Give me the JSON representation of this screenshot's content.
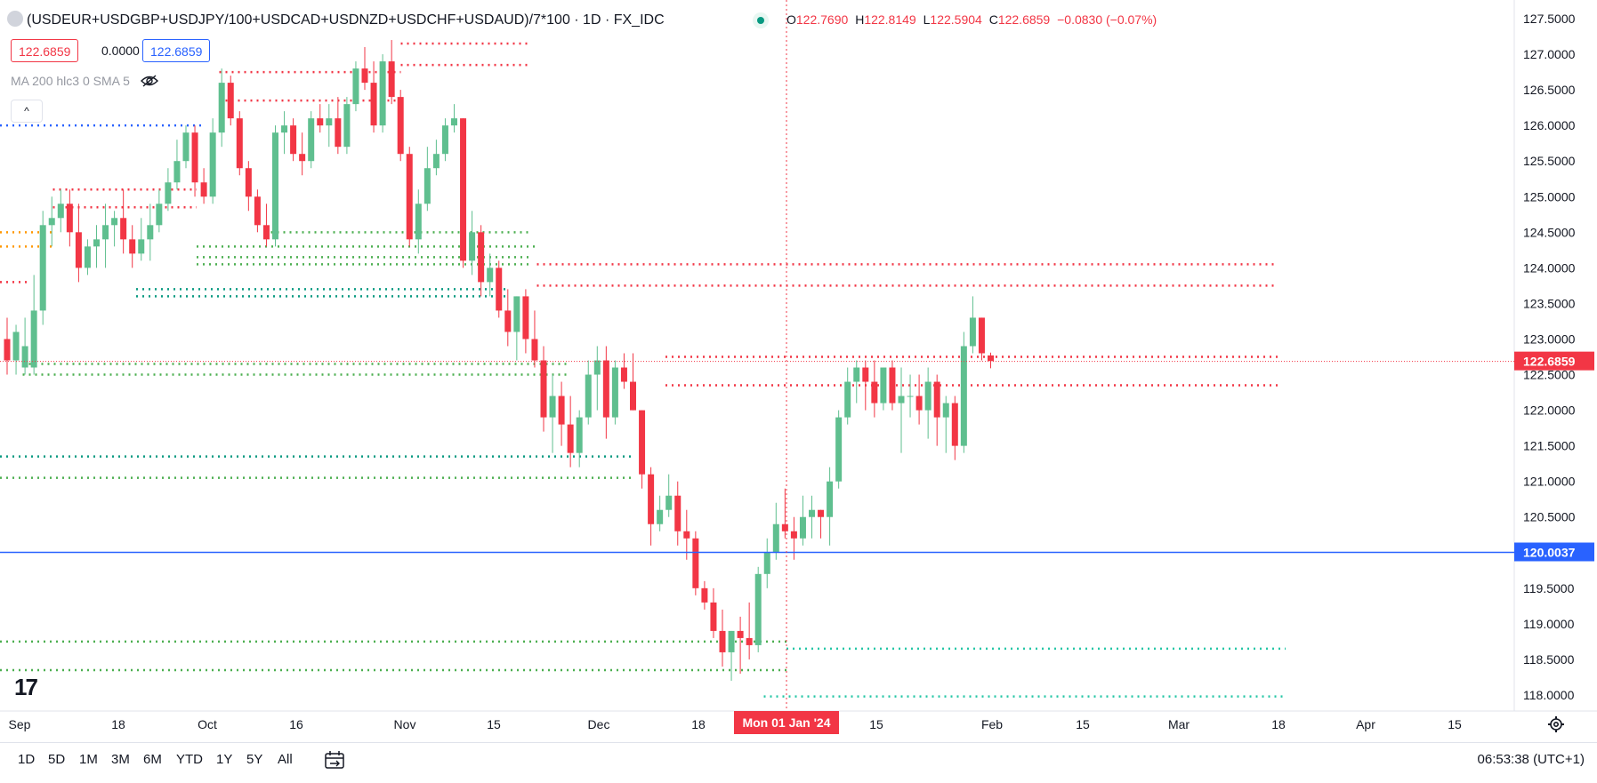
{
  "header": {
    "symbol": "(USDEUR+USDGBP+USDJPY/100+USDCAD+USDNZD+USDCHF+USDAUD)/7*100 · 1D · FX_IDC",
    "ohlc": {
      "o_label": "O",
      "o": "122.7690",
      "h_label": "H",
      "h": "122.8149",
      "l_label": "L",
      "l": "122.5904",
      "c_label": "C",
      "c": "122.6859",
      "change": "−0.0830 (−0.07%)"
    },
    "sell_price": "122.6859",
    "spread": "0.0000",
    "buy_price": "122.6859",
    "indicator": "MA 200 hlc3 0 SMA 5",
    "collapse_label": "^",
    "logo": "17"
  },
  "bottom": {
    "ranges": [
      "1D",
      "5D",
      "1M",
      "3M",
      "6M",
      "YTD",
      "1Y",
      "5Y",
      "All"
    ],
    "clock": "06:53:38 (UTC+1)"
  },
  "colors": {
    "up": "#089981",
    "up_body": "#5fbf8f",
    "down": "#f23645",
    "blue": "#2962ff",
    "grid": "#f0f3fa"
  },
  "chart_data": {
    "type": "candlestick",
    "y_range": [
      117.9,
      127.8
    ],
    "y_ticks": [
      "127.5000",
      "127.0000",
      "126.5000",
      "126.0000",
      "125.5000",
      "125.0000",
      "124.5000",
      "124.0000",
      "123.5000",
      "123.0000",
      "122.5000",
      "122.0000",
      "121.5000",
      "121.0000",
      "120.5000",
      "120.0000",
      "119.5000",
      "119.0000",
      "118.5000",
      "118.0000"
    ],
    "x_labels": [
      "Sep",
      "18",
      "Oct",
      "16",
      "Nov",
      "15",
      "Dec",
      "18",
      "15",
      "Feb",
      "15",
      "Mar",
      "18",
      "Apr",
      "15"
    ],
    "crosshair_label": "Mon 01 Jan '24",
    "last_price_label": "122.6859",
    "horizontal_line_label": "120.0037",
    "horizontal_line_value": 120.0037,
    "last_price_value": 122.6859,
    "candles": [
      [
        123.0,
        123.3,
        122.5,
        122.7
      ],
      [
        122.7,
        123.2,
        122.5,
        123.1
      ],
      [
        122.6,
        123.3,
        122.5,
        122.9
      ],
      [
        122.6,
        123.9,
        122.5,
        123.4
      ],
      [
        123.4,
        124.8,
        123.2,
        124.6
      ],
      [
        124.6,
        125.0,
        124.3,
        124.7
      ],
      [
        124.7,
        125.1,
        124.5,
        124.9
      ],
      [
        124.9,
        125.1,
        124.3,
        124.5
      ],
      [
        124.5,
        124.9,
        123.8,
        124.0
      ],
      [
        124.0,
        124.4,
        123.9,
        124.3
      ],
      [
        124.3,
        124.6,
        124.0,
        124.4
      ],
      [
        124.4,
        124.9,
        124.0,
        124.6
      ],
      [
        124.6,
        124.8,
        124.3,
        124.7
      ],
      [
        124.7,
        125.1,
        124.2,
        124.4
      ],
      [
        124.4,
        124.6,
        124.0,
        124.2
      ],
      [
        124.2,
        124.7,
        124.1,
        124.4
      ],
      [
        124.4,
        124.9,
        124.1,
        124.6
      ],
      [
        124.6,
        125.1,
        124.5,
        124.9
      ],
      [
        124.9,
        125.4,
        124.8,
        125.2
      ],
      [
        125.2,
        125.8,
        125.1,
        125.5
      ],
      [
        125.5,
        126.0,
        125.4,
        125.9
      ],
      [
        125.9,
        126.0,
        125.0,
        125.2
      ],
      [
        125.2,
        125.4,
        124.9,
        125.0
      ],
      [
        125.0,
        126.1,
        124.9,
        125.9
      ],
      [
        125.9,
        126.8,
        125.7,
        126.6
      ],
      [
        126.6,
        126.7,
        126.0,
        126.1
      ],
      [
        126.1,
        126.2,
        125.3,
        125.4
      ],
      [
        125.4,
        125.5,
        124.8,
        125.0
      ],
      [
        125.0,
        125.1,
        124.5,
        124.6
      ],
      [
        124.6,
        124.9,
        124.3,
        124.4
      ],
      [
        124.4,
        126.0,
        124.3,
        125.9
      ],
      [
        125.9,
        126.2,
        125.6,
        126.0
      ],
      [
        126.0,
        126.1,
        125.5,
        125.6
      ],
      [
        125.6,
        125.9,
        125.3,
        125.5
      ],
      [
        125.5,
        126.2,
        125.4,
        126.1
      ],
      [
        126.1,
        126.3,
        125.9,
        126.0
      ],
      [
        126.0,
        126.3,
        125.7,
        126.1
      ],
      [
        126.1,
        126.4,
        125.6,
        125.7
      ],
      [
        125.7,
        126.4,
        125.6,
        126.3
      ],
      [
        126.3,
        126.9,
        126.2,
        126.8
      ],
      [
        126.8,
        127.1,
        126.5,
        126.6
      ],
      [
        126.6,
        126.9,
        125.9,
        126.0
      ],
      [
        126.0,
        127.0,
        125.9,
        126.9
      ],
      [
        126.9,
        127.2,
        126.3,
        126.4
      ],
      [
        126.4,
        126.5,
        125.5,
        125.6
      ],
      [
        125.6,
        125.7,
        124.3,
        124.4
      ],
      [
        124.4,
        125.1,
        124.2,
        124.9
      ],
      [
        124.9,
        125.7,
        124.8,
        125.4
      ],
      [
        125.4,
        125.8,
        125.3,
        125.6
      ],
      [
        125.6,
        126.1,
        125.5,
        126.0
      ],
      [
        126.0,
        126.3,
        125.9,
        126.1
      ],
      [
        126.1,
        126.1,
        124.0,
        124.1
      ],
      [
        124.1,
        124.8,
        123.9,
        124.5
      ],
      [
        124.5,
        124.6,
        123.6,
        123.8
      ],
      [
        123.8,
        124.2,
        123.6,
        124.0
      ],
      [
        124.0,
        124.1,
        123.3,
        123.4
      ],
      [
        123.4,
        123.7,
        122.9,
        123.1
      ],
      [
        123.1,
        123.6,
        122.7,
        123.6
      ],
      [
        123.6,
        123.7,
        122.8,
        123.0
      ],
      [
        123.0,
        123.4,
        122.6,
        122.7
      ],
      [
        122.7,
        122.9,
        121.7,
        121.9
      ],
      [
        121.9,
        122.5,
        121.4,
        122.2
      ],
      [
        122.2,
        122.4,
        121.5,
        121.8
      ],
      [
        121.8,
        122.2,
        121.2,
        121.4
      ],
      [
        121.4,
        122.0,
        121.2,
        121.9
      ],
      [
        121.9,
        122.7,
        121.8,
        122.5
      ],
      [
        122.5,
        122.9,
        122.0,
        122.7
      ],
      [
        122.7,
        122.9,
        121.6,
        121.9
      ],
      [
        121.9,
        122.7,
        121.8,
        122.6
      ],
      [
        122.6,
        122.8,
        122.3,
        122.4
      ],
      [
        122.4,
        122.8,
        122.0,
        122.0
      ],
      [
        122.0,
        122.0,
        120.9,
        121.1
      ],
      [
        121.1,
        121.2,
        120.1,
        120.4
      ],
      [
        120.4,
        120.8,
        120.3,
        120.6
      ],
      [
        120.6,
        121.1,
        120.5,
        120.8
      ],
      [
        120.8,
        121.0,
        120.1,
        120.3
      ],
      [
        120.3,
        120.6,
        119.9,
        120.2
      ],
      [
        120.2,
        120.3,
        119.4,
        119.5
      ],
      [
        119.5,
        119.6,
        119.2,
        119.3
      ],
      [
        119.3,
        119.5,
        118.8,
        118.9
      ],
      [
        118.9,
        119.2,
        118.4,
        118.6
      ],
      [
        118.6,
        118.9,
        118.2,
        118.9
      ],
      [
        118.9,
        119.1,
        118.3,
        118.8
      ],
      [
        118.8,
        119.3,
        118.5,
        118.7
      ],
      [
        118.7,
        119.8,
        118.6,
        119.7
      ],
      [
        119.7,
        120.2,
        119.5,
        120.0
      ],
      [
        120.0,
        120.7,
        119.9,
        120.4
      ],
      [
        120.4,
        120.9,
        120.2,
        120.3
      ],
      [
        120.3,
        120.5,
        119.9,
        120.2
      ],
      [
        120.2,
        120.8,
        120.1,
        120.5
      ],
      [
        120.5,
        120.8,
        120.2,
        120.6
      ],
      [
        120.6,
        120.6,
        120.2,
        120.5
      ],
      [
        120.5,
        121.2,
        120.1,
        121.0
      ],
      [
        121.0,
        122.0,
        120.9,
        121.9
      ],
      [
        121.9,
        122.6,
        121.8,
        122.4
      ],
      [
        122.4,
        122.7,
        122.1,
        122.6
      ],
      [
        122.6,
        122.7,
        122.0,
        122.4
      ],
      [
        122.4,
        122.7,
        121.9,
        122.1
      ],
      [
        122.1,
        122.6,
        122.0,
        122.6
      ],
      [
        122.6,
        122.7,
        122.0,
        122.1
      ],
      [
        122.1,
        122.6,
        121.4,
        122.2
      ],
      [
        122.2,
        122.5,
        121.9,
        122.2
      ],
      [
        122.2,
        122.5,
        121.8,
        122.0
      ],
      [
        122.0,
        122.6,
        121.6,
        122.4
      ],
      [
        122.4,
        122.5,
        121.5,
        121.9
      ],
      [
        121.9,
        122.2,
        121.4,
        122.1
      ],
      [
        122.1,
        122.2,
        121.3,
        121.5
      ],
      [
        121.5,
        123.1,
        121.4,
        122.9
      ],
      [
        122.9,
        123.6,
        122.8,
        123.3
      ],
      [
        123.3,
        123.3,
        122.7,
        122.8
      ],
      [
        122.77,
        122.81,
        122.59,
        122.69
      ]
    ],
    "h_lines": [
      {
        "value": 126.0,
        "color": "#2962ff",
        "x0": 0.0,
        "x1": 0.135
      },
      {
        "value": 124.5,
        "color": "#ff9800",
        "x0": 0.0,
        "x1": 0.035
      },
      {
        "value": 124.3,
        "color": "#ff9800",
        "x0": 0.0,
        "x1": 0.035
      },
      {
        "value": 125.1,
        "color": "#f23645",
        "x0": 0.035,
        "x1": 0.13
      },
      {
        "value": 124.85,
        "color": "#f23645",
        "x0": 0.035,
        "x1": 0.13
      },
      {
        "value": 126.75,
        "color": "#f23645",
        "x0": 0.145,
        "x1": 0.265
      },
      {
        "value": 126.35,
        "color": "#f23645",
        "x0": 0.145,
        "x1": 0.265
      },
      {
        "value": 127.15,
        "color": "#f23645",
        "x0": 0.265,
        "x1": 0.35
      },
      {
        "value": 126.85,
        "color": "#f23645",
        "x0": 0.265,
        "x1": 0.35
      },
      {
        "value": 123.8,
        "color": "#f23645",
        "x0": 0.0,
        "x1": 0.02
      },
      {
        "value": 124.5,
        "color": "#4caf50",
        "x0": 0.175,
        "x1": 0.35
      },
      {
        "value": 124.3,
        "color": "#4caf50",
        "x0": 0.13,
        "x1": 0.355
      },
      {
        "value": 124.15,
        "color": "#4caf50",
        "x0": 0.13,
        "x1": 0.35
      },
      {
        "value": 124.05,
        "color": "#4caf50",
        "x0": 0.13,
        "x1": 0.35
      },
      {
        "value": 123.7,
        "color": "#089981",
        "x0": 0.09,
        "x1": 0.335
      },
      {
        "value": 123.6,
        "color": "#089981",
        "x0": 0.09,
        "x1": 0.335
      },
      {
        "value": 122.65,
        "color": "#4caf50",
        "x0": 0.015,
        "x1": 0.375
      },
      {
        "value": 122.5,
        "color": "#4caf50",
        "x0": 0.015,
        "x1": 0.375
      },
      {
        "value": 121.35,
        "color": "#089981",
        "x0": 0.0,
        "x1": 0.42
      },
      {
        "value": 121.05,
        "color": "#4caf50",
        "x0": 0.0,
        "x1": 0.42
      },
      {
        "value": 124.05,
        "color": "#f23645",
        "x0": 0.355,
        "x1": 0.845
      },
      {
        "value": 123.75,
        "color": "#f23645",
        "x0": 0.355,
        "x1": 0.845
      },
      {
        "value": 122.75,
        "color": "#f23645",
        "x0": 0.44,
        "x1": 0.845
      },
      {
        "value": 122.35,
        "color": "#f23645",
        "x0": 0.44,
        "x1": 0.845
      },
      {
        "value": 118.75,
        "color": "#4caf50",
        "x0": 0.0,
        "x1": 0.52
      },
      {
        "value": 118.35,
        "color": "#4caf50",
        "x0": 0.0,
        "x1": 0.52
      },
      {
        "value": 118.65,
        "color": "#26c6a6",
        "x0": 0.52,
        "x1": 0.85
      },
      {
        "value": 117.98,
        "color": "#26c6a6",
        "x0": 0.505,
        "x1": 0.85
      }
    ]
  }
}
